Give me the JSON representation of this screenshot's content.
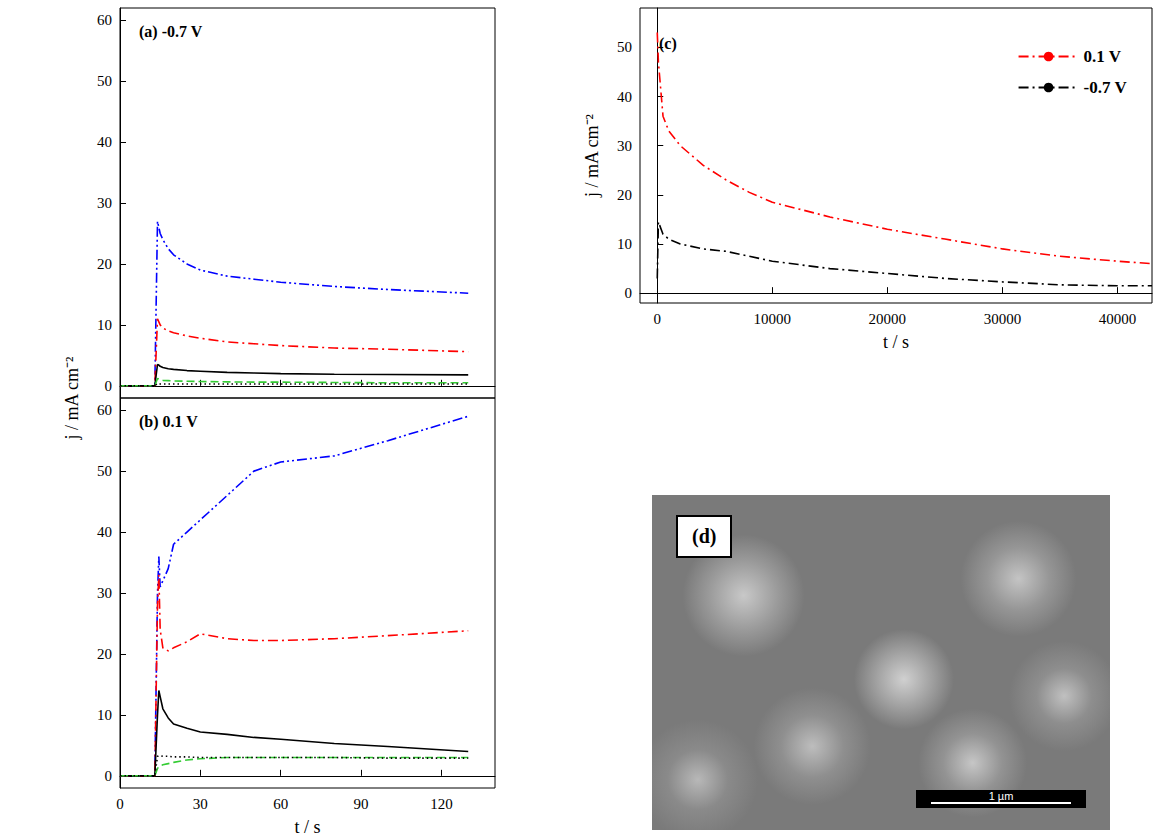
{
  "chart_data": [
    {
      "type": "line",
      "title": "(a) -0.7 V",
      "x": [
        0,
        13,
        14,
        14.5,
        15,
        16,
        18,
        20,
        25,
        30,
        40,
        50,
        60,
        80,
        100,
        130
      ],
      "xlim": [
        0,
        140
      ],
      "xticks": [
        0,
        30,
        60,
        90,
        120
      ],
      "ylim": [
        -2,
        62
      ],
      "yticks": [
        0,
        10,
        20,
        30,
        40,
        50,
        60
      ],
      "y_label": "j / mA cm⁻²",
      "grid": false,
      "tick_labels": "y",
      "series": [
        {
          "color": "#0000ff",
          "line_style": "dashdotdot",
          "values": [
            0,
            0,
            27,
            26,
            25,
            24,
            22.5,
            21.5,
            20,
            19,
            18,
            17.5,
            17,
            16.3,
            15.8,
            15.2
          ]
        },
        {
          "color": "#ff0000",
          "line_style": "dashdot",
          "values": [
            0,
            0,
            11,
            10.5,
            10,
            9.5,
            9,
            8.7,
            8.2,
            7.8,
            7.2,
            6.9,
            6.6,
            6.2,
            6,
            5.6
          ]
        },
        {
          "color": "#000000",
          "line_style": "solid",
          "values": [
            0,
            0,
            3.5,
            3.4,
            3.2,
            3,
            2.8,
            2.7,
            2.5,
            2.4,
            2.2,
            2.1,
            2,
            1.9,
            1.85,
            1.8
          ]
        },
        {
          "color": "#33cc33",
          "line_style": "dashed",
          "values": [
            0,
            0,
            1.2,
            1.1,
            1,
            0.9,
            0.85,
            0.8,
            0.75,
            0.7,
            0.65,
            0.6,
            0.6,
            0.55,
            0.5,
            0.5
          ]
        },
        {
          "color": "#000000",
          "line_style": "dotted",
          "values": [
            0,
            0,
            0.4,
            0.35,
            0.3,
            0.3,
            0.3,
            0.3,
            0.3,
            0.3,
            0.3,
            0.3,
            0.3,
            0.3,
            0.3,
            0.3
          ]
        }
      ]
    },
    {
      "type": "line",
      "title": "(b) 0.1 V",
      "x": [
        0,
        13,
        14,
        14.5,
        15,
        16,
        18,
        20,
        25,
        30,
        40,
        50,
        60,
        80,
        100,
        130
      ],
      "xlim": [
        0,
        140
      ],
      "xticks": [
        0,
        30,
        60,
        90,
        120
      ],
      "ylim": [
        -2,
        62
      ],
      "yticks": [
        0,
        10,
        20,
        30,
        40,
        50,
        60
      ],
      "x_label": "t / s",
      "grid": false,
      "series": [
        {
          "color": "#0000ff",
          "line_style": "dashdotdot",
          "values": [
            0,
            0,
            30,
            36,
            31,
            32,
            34,
            38,
            40,
            42,
            46,
            50,
            51.5,
            52.5,
            55,
            59
          ]
        },
        {
          "color": "#ff0000",
          "line_style": "dashdot",
          "values": [
            0,
            0,
            28,
            33,
            24,
            21,
            20.5,
            21,
            22,
            23.3,
            22.5,
            22.2,
            22.2,
            22.5,
            23,
            23.8
          ]
        },
        {
          "color": "#000000",
          "line_style": "solid",
          "values": [
            0,
            0,
            10,
            14,
            13,
            11,
            9.5,
            8.5,
            7.8,
            7.2,
            6.8,
            6.3,
            6,
            5.3,
            4.8,
            4
          ]
        },
        {
          "color": "#33cc33",
          "line_style": "dashed",
          "values": [
            0,
            0,
            1.2,
            1.5,
            1.6,
            1.8,
            2,
            2.2,
            2.6,
            2.8,
            3,
            3,
            3,
            3,
            3,
            3
          ]
        },
        {
          "color": "#000000",
          "line_style": "dotted",
          "values": [
            0,
            0,
            3.2,
            3.3,
            3.3,
            3.2,
            3.2,
            3.1,
            3.1,
            3,
            3,
            3,
            3,
            3,
            2.9,
            2.9
          ]
        }
      ]
    },
    {
      "type": "line",
      "title": "(c)",
      "x": [
        0,
        100,
        500,
        1000,
        2000,
        4000,
        6000,
        8000,
        10000,
        15000,
        20000,
        25000,
        30000,
        35000,
        40000,
        43000
      ],
      "xlim": [
        -1500,
        43000
      ],
      "xticks": [
        0,
        10000,
        20000,
        30000,
        40000
      ],
      "ylim": [
        -2,
        58
      ],
      "yticks": [
        0,
        10,
        20,
        30,
        40,
        50
      ],
      "x_label": "t / s",
      "y_label": "j / mA cm⁻²",
      "grid": false,
      "legend": "upper right",
      "series": [
        {
          "name": "0.1 V",
          "color": "#ff0000",
          "line_style": "dashdot",
          "values": [
            53,
            47,
            36,
            33,
            30,
            26,
            23,
            20.5,
            18.5,
            15.5,
            13,
            11,
            9,
            7.5,
            6.5,
            6
          ]
        },
        {
          "name": "-0.7 V",
          "color": "#000000",
          "line_style": "dashdot",
          "values": [
            3,
            14.5,
            12,
            11,
            10,
            9,
            8.5,
            7.5,
            6.5,
            5,
            4,
            3,
            2.3,
            1.7,
            1.5,
            1.5
          ]
        }
      ]
    }
  ],
  "image": {
    "label": "(d)",
    "scale_bar": "1 µm"
  }
}
